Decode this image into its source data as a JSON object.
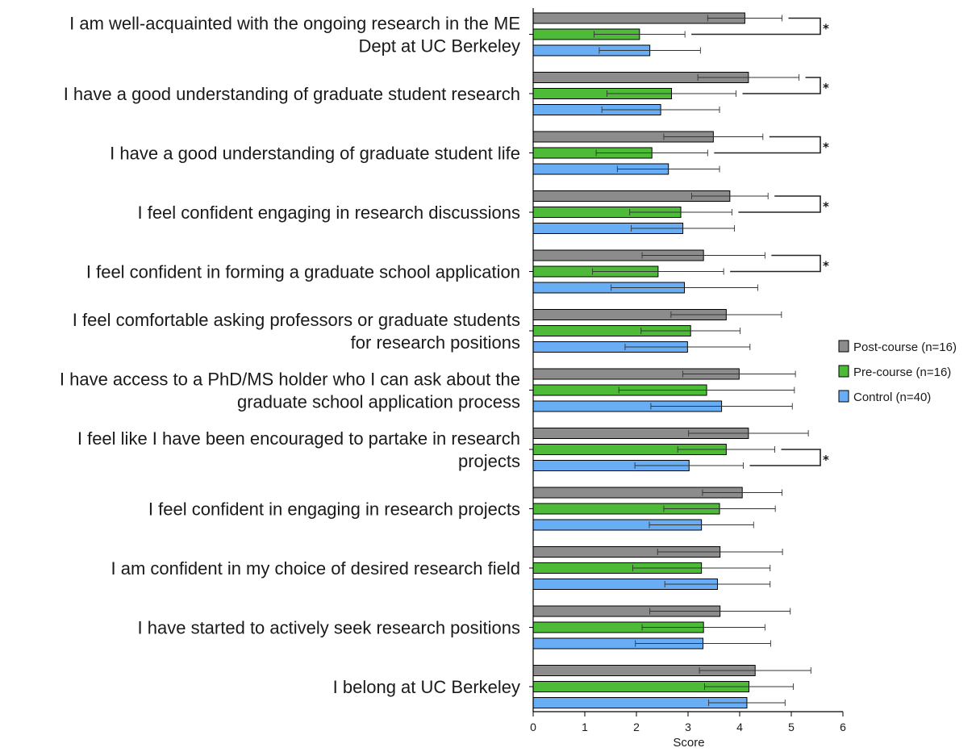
{
  "chart_data": {
    "type": "bar",
    "orientation": "horizontal",
    "categories": [
      [
        "I am well-acquainted with the ongoing research in the ME",
        "Dept at UC Berkeley"
      ],
      [
        "I have a good understanding of graduate student research"
      ],
      [
        "I have a good understanding of graduate student life"
      ],
      [
        "I feel confident engaging in research discussions"
      ],
      [
        "I feel confident in forming a graduate school application"
      ],
      [
        "I feel comfortable asking professors or graduate students",
        "for research positions"
      ],
      [
        "I have access to a PhD/MS holder who I can ask about the",
        "graduate school application process"
      ],
      [
        "I feel like I have been encouraged to partake in research",
        "projects"
      ],
      [
        "I feel confident in engaging in research projects"
      ],
      [
        "I am confident in my choice of desired research field"
      ],
      [
        "I have started to actively seek research positions"
      ],
      [
        "I belong at UC Berkeley"
      ]
    ],
    "series": [
      {
        "name": "Post-course (n=16)",
        "color": "#8c8c8c",
        "values": [
          4.1,
          4.17,
          3.49,
          3.81,
          3.3,
          3.74,
          3.99,
          4.17,
          4.05,
          3.62,
          3.62,
          4.3
        ],
        "errors": [
          0.72,
          0.98,
          0.96,
          0.74,
          1.19,
          1.07,
          1.09,
          1.16,
          0.77,
          1.21,
          1.36,
          1.08
        ]
      },
      {
        "name": "Pre-course (n=16)",
        "color": "#4dbb37",
        "values": [
          2.06,
          2.68,
          2.3,
          2.86,
          2.42,
          3.05,
          3.36,
          3.74,
          3.61,
          3.26,
          3.3,
          4.18
        ],
        "errors": [
          0.88,
          1.25,
          1.08,
          0.99,
          1.27,
          0.96,
          1.7,
          0.94,
          1.08,
          1.33,
          1.19,
          0.86
        ]
      },
      {
        "name": "Control (n=40)",
        "color": "#69aef5",
        "values": [
          2.26,
          2.47,
          2.62,
          2.9,
          2.93,
          2.99,
          3.65,
          3.02,
          3.26,
          3.57,
          3.29,
          4.14
        ],
        "errors": [
          0.98,
          1.14,
          0.99,
          1.0,
          1.42,
          1.21,
          1.37,
          1.05,
          1.01,
          1.02,
          1.31,
          0.74
        ]
      }
    ],
    "significance": [
      {
        "category_index": 0,
        "pair": [
          "Post-course (n=16)",
          "Pre-course (n=16)"
        ],
        "label": "*"
      },
      {
        "category_index": 1,
        "pair": [
          "Post-course (n=16)",
          "Pre-course (n=16)"
        ],
        "label": "*"
      },
      {
        "category_index": 2,
        "pair": [
          "Post-course (n=16)",
          "Pre-course (n=16)"
        ],
        "label": "*"
      },
      {
        "category_index": 3,
        "pair": [
          "Post-course (n=16)",
          "Pre-course (n=16)"
        ],
        "label": "*"
      },
      {
        "category_index": 4,
        "pair": [
          "Post-course (n=16)",
          "Pre-course (n=16)"
        ],
        "label": "*"
      },
      {
        "category_index": 7,
        "pair": [
          "Pre-course (n=16)",
          "Control (n=40)"
        ],
        "label": "*"
      }
    ],
    "xlabel": "Score",
    "ylabel": "",
    "title": "",
    "xlim": [
      0,
      6
    ],
    "xticks": [
      "0",
      "1",
      "2",
      "3",
      "4",
      "5",
      "6"
    ],
    "grid": false,
    "legend_position": "right"
  }
}
